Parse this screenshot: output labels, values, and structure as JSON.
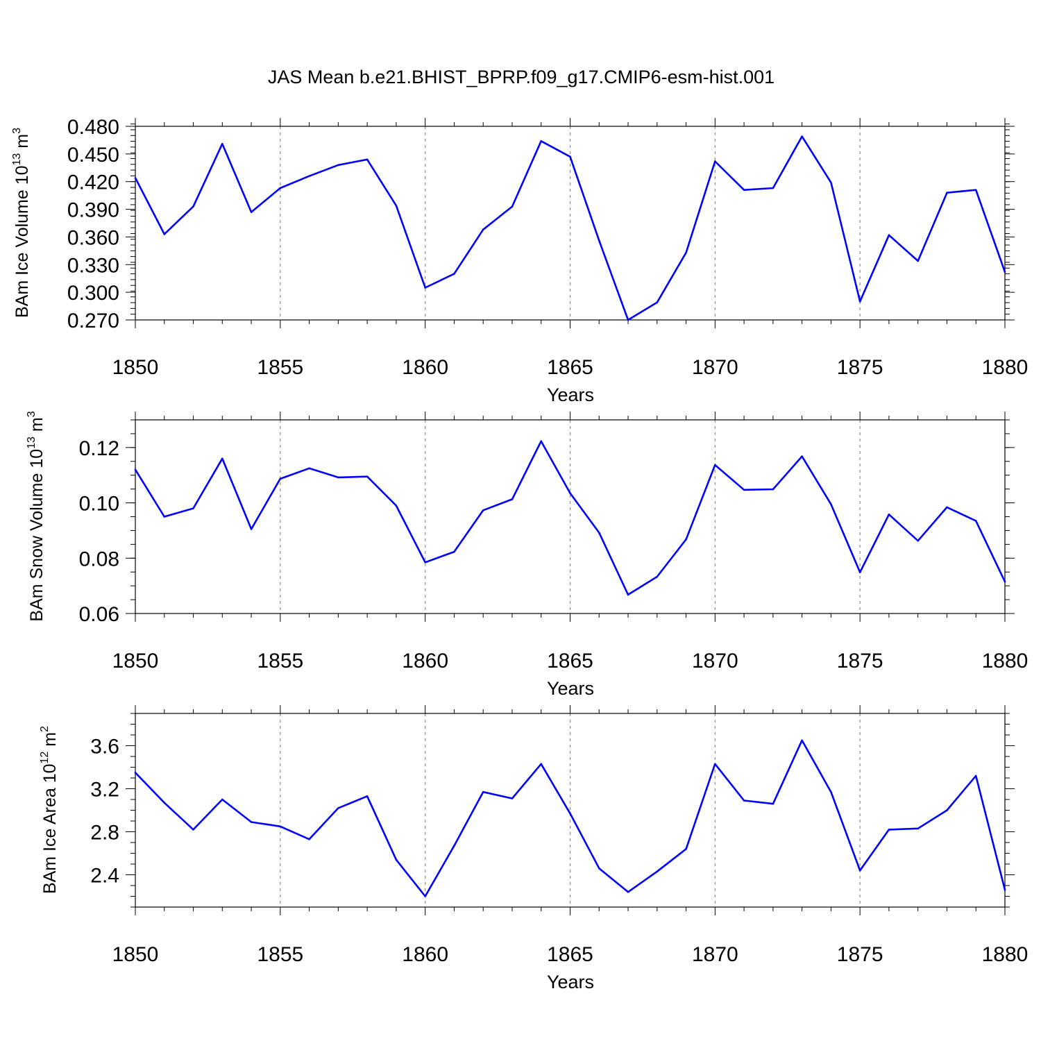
{
  "figure": {
    "title": "JAS Mean b.e21.BHIST_BPRP.f09_g17.CMIP6-esm-hist.001"
  },
  "colors": {
    "series": "#0000ff",
    "grid": "#8c8c8c",
    "axis": "#000000"
  },
  "chart_data": [
    {
      "type": "line",
      "title": "",
      "xlabel": "Years",
      "ylabel": "BAm Ice Volume 10",
      "ylabel_sup": "13",
      "ylabel_unit": "m",
      "ylabel_unit_sup": "3",
      "xlim": [
        1850,
        1880
      ],
      "ylim": [
        0.27,
        0.48
      ],
      "x_ticks": [
        "1850",
        "1855",
        "1860",
        "1865",
        "1870",
        "1875",
        "1880"
      ],
      "y_ticks": [
        "0.270",
        "0.300",
        "0.330",
        "0.360",
        "0.390",
        "0.420",
        "0.450",
        "0.480"
      ],
      "grid": "vertical dashed at major x ticks",
      "x": [
        1850,
        1851,
        1852,
        1853,
        1854,
        1855,
        1856,
        1857,
        1858,
        1859,
        1860,
        1861,
        1862,
        1863,
        1864,
        1865,
        1866,
        1867,
        1868,
        1869,
        1870,
        1871,
        1872,
        1873,
        1874,
        1875,
        1876,
        1877,
        1878,
        1879,
        1880
      ],
      "series": [
        {
          "values": [
            0.424,
            0.363,
            0.393,
            0.461,
            0.387,
            0.413,
            0.426,
            0.438,
            0.444,
            0.394,
            0.305,
            0.32,
            0.368,
            0.393,
            0.464,
            0.447,
            0.356,
            0.27,
            0.289,
            0.343,
            0.442,
            0.411,
            0.413,
            0.469,
            0.419,
            0.29,
            0.362,
            0.334,
            0.408,
            0.411,
            0.322
          ]
        }
      ]
    },
    {
      "type": "line",
      "title": "",
      "xlabel": "Years",
      "ylabel": "BAm Snow Volume 10",
      "ylabel_sup": "13",
      "ylabel_unit": "m",
      "ylabel_unit_sup": "3",
      "xlim": [
        1850,
        1880
      ],
      "ylim": [
        0.06,
        0.13
      ],
      "x_ticks": [
        "1850",
        "1855",
        "1860",
        "1865",
        "1870",
        "1875",
        "1880"
      ],
      "y_ticks": [
        "0.06",
        "0.08",
        "0.10",
        "0.12"
      ],
      "grid": "vertical dashed at major x ticks",
      "x": [
        1850,
        1851,
        1852,
        1853,
        1854,
        1855,
        1856,
        1857,
        1858,
        1859,
        1860,
        1861,
        1862,
        1863,
        1864,
        1865,
        1866,
        1867,
        1868,
        1869,
        1870,
        1871,
        1872,
        1873,
        1874,
        1875,
        1876,
        1877,
        1878,
        1879,
        1880
      ],
      "series": [
        {
          "values": [
            0.112,
            0.095,
            0.098,
            0.116,
            0.0905,
            0.1087,
            0.1125,
            0.1092,
            0.1095,
            0.099,
            0.0785,
            0.0823,
            0.0973,
            0.1013,
            0.1223,
            0.1035,
            0.0892,
            0.0668,
            0.0733,
            0.0868,
            0.1137,
            0.1047,
            0.1049,
            0.1168,
            0.0995,
            0.0749,
            0.0958,
            0.0863,
            0.0984,
            0.0935,
            0.0715
          ]
        }
      ]
    },
    {
      "type": "line",
      "title": "",
      "xlabel": "Years",
      "ylabel": "BAm Ice Area 10",
      "ylabel_sup": "12",
      "ylabel_unit": "m",
      "ylabel_unit_sup": "2",
      "xlim": [
        1850,
        1880
      ],
      "ylim": [
        2.1,
        3.9
      ],
      "x_ticks": [
        "1850",
        "1855",
        "1860",
        "1865",
        "1870",
        "1875",
        "1880"
      ],
      "y_ticks": [
        "2.4",
        "2.8",
        "3.2",
        "3.6"
      ],
      "grid": "vertical dashed at major x ticks",
      "x": [
        1850,
        1851,
        1852,
        1853,
        1854,
        1855,
        1856,
        1857,
        1858,
        1859,
        1860,
        1861,
        1862,
        1863,
        1864,
        1865,
        1866,
        1867,
        1868,
        1869,
        1870,
        1871,
        1872,
        1873,
        1874,
        1875,
        1876,
        1877,
        1878,
        1879,
        1880
      ],
      "series": [
        {
          "values": [
            3.35,
            3.07,
            2.82,
            3.1,
            2.89,
            2.85,
            2.73,
            3.02,
            3.13,
            2.54,
            2.2,
            2.67,
            3.17,
            3.11,
            3.43,
            2.97,
            2.46,
            2.24,
            2.43,
            2.64,
            3.43,
            3.09,
            3.06,
            3.65,
            3.17,
            2.44,
            2.82,
            2.83,
            3.0,
            3.32,
            2.26
          ]
        }
      ]
    }
  ]
}
